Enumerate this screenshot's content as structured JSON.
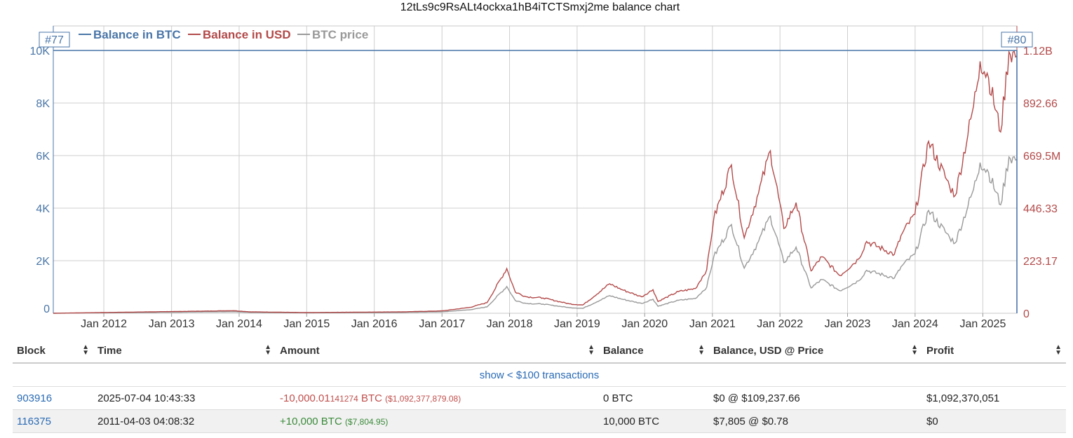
{
  "chart_data": {
    "type": "line",
    "title": "12tLs9c9RsALt4ockxa1hB4iTCTSmxj2me balance chart",
    "legend": [
      "Balance in BTC",
      "Balance in USD",
      "BTC price"
    ],
    "legend_placement": "top-left",
    "markers": [
      "#77",
      "#80"
    ],
    "colors": {
      "btc": "#4a76a8",
      "usd": "#b34a4a",
      "price": "#999999"
    },
    "x_ticks": [
      "Jan 2012",
      "Jan 2013",
      "Jan 2014",
      "Jan 2015",
      "Jan 2016",
      "Jan 2017",
      "Jan 2018",
      "Jan 2019",
      "Jan 2020",
      "Jan 2021",
      "Jan 2022",
      "Jan 2023",
      "Jan 2024",
      "Jan 2025"
    ],
    "xlim": [
      "2011-04-03",
      "2025-07-04"
    ],
    "y_left": {
      "label": "",
      "ticks": [
        "0",
        "2K",
        "4K",
        "6K",
        "8K",
        "10K"
      ],
      "ylim": [
        0,
        10000
      ]
    },
    "y_right": {
      "label": "",
      "ticks": [
        "0",
        "223.17",
        "446.33",
        "669.5M",
        "892.66",
        "1.12B"
      ],
      "ylim": [
        0,
        1116000000
      ]
    },
    "grid": true,
    "series": [
      {
        "name": "Balance in BTC",
        "points": [
          [
            "2011-04-03",
            10000
          ],
          [
            "2025-07-04",
            10000
          ],
          [
            "2025-07-04",
            0
          ]
        ]
      },
      {
        "name": "Balance in USD",
        "points": [
          [
            "2011-04-03",
            7805
          ],
          [
            "2013-12-01",
            11000000
          ],
          [
            "2014-03-01",
            6000000
          ],
          [
            "2015-01-01",
            3000000
          ],
          [
            "2016-06-01",
            6000000
          ],
          [
            "2017-01-01",
            10000000
          ],
          [
            "2017-06-01",
            25000000
          ],
          [
            "2017-09-01",
            45000000
          ],
          [
            "2017-12-17",
            190000000
          ],
          [
            "2018-02-01",
            90000000
          ],
          [
            "2018-04-01",
            70000000
          ],
          [
            "2018-07-01",
            65000000
          ],
          [
            "2018-11-20",
            40000000
          ],
          [
            "2019-02-01",
            35000000
          ],
          [
            "2019-06-26",
            125000000
          ],
          [
            "2019-09-01",
            100000000
          ],
          [
            "2019-12-15",
            70000000
          ],
          [
            "2020-02-15",
            100000000
          ],
          [
            "2020-03-13",
            50000000
          ],
          [
            "2020-07-01",
            92000000
          ],
          [
            "2020-10-01",
            105000000
          ],
          [
            "2020-12-01",
            185000000
          ],
          [
            "2021-01-08",
            400000000
          ],
          [
            "2021-04-14",
            630000000
          ],
          [
            "2021-06-22",
            320000000
          ],
          [
            "2021-09-07",
            510000000
          ],
          [
            "2021-11-10",
            690000000
          ],
          [
            "2022-01-22",
            360000000
          ],
          [
            "2022-03-29",
            470000000
          ],
          [
            "2022-06-18",
            180000000
          ],
          [
            "2022-08-15",
            240000000
          ],
          [
            "2022-11-21",
            160000000
          ],
          [
            "2023-03-01",
            230000000
          ],
          [
            "2023-04-14",
            305000000
          ],
          [
            "2023-09-11",
            250000000
          ],
          [
            "2023-10-24",
            340000000
          ],
          [
            "2023-12-31",
            420000000
          ],
          [
            "2024-03-14",
            730000000
          ],
          [
            "2024-07-05",
            540000000
          ],
          [
            "2024-08-05",
            500000000
          ],
          [
            "2024-11-12",
            880000000
          ],
          [
            "2024-12-17",
            1070000000
          ],
          [
            "2025-02-01",
            1000000000
          ],
          [
            "2025-04-07",
            770000000
          ],
          [
            "2025-05-22",
            1110000000
          ],
          [
            "2025-07-04",
            1092377879
          ]
        ]
      },
      {
        "name": "BTC price",
        "points": [
          [
            "2011-04-03",
            0.78
          ],
          [
            "2013-12-01",
            1100
          ],
          [
            "2014-03-01",
            600
          ],
          [
            "2015-01-01",
            300
          ],
          [
            "2016-06-01",
            600
          ],
          [
            "2017-01-01",
            1000
          ],
          [
            "2017-06-01",
            2500
          ],
          [
            "2017-09-01",
            4500
          ],
          [
            "2017-12-17",
            19000
          ],
          [
            "2018-02-01",
            9000
          ],
          [
            "2018-04-01",
            7000
          ],
          [
            "2018-07-01",
            6500
          ],
          [
            "2018-11-20",
            4000
          ],
          [
            "2019-02-01",
            3500
          ],
          [
            "2019-06-26",
            12500
          ],
          [
            "2019-09-01",
            10000
          ],
          [
            "2019-12-15",
            7000
          ],
          [
            "2020-02-15",
            10000
          ],
          [
            "2020-03-13",
            5000
          ],
          [
            "2020-07-01",
            9200
          ],
          [
            "2020-10-01",
            10500
          ],
          [
            "2020-12-01",
            18500
          ],
          [
            "2021-01-08",
            40000
          ],
          [
            "2021-04-14",
            63000
          ],
          [
            "2021-06-22",
            32000
          ],
          [
            "2021-09-07",
            51000
          ],
          [
            "2021-11-10",
            69000
          ],
          [
            "2022-01-22",
            36000
          ],
          [
            "2022-03-29",
            47000
          ],
          [
            "2022-06-18",
            18000
          ],
          [
            "2022-08-15",
            24000
          ],
          [
            "2022-11-21",
            16000
          ],
          [
            "2023-03-01",
            23000
          ],
          [
            "2023-04-14",
            30500
          ],
          [
            "2023-09-11",
            25000
          ],
          [
            "2023-10-24",
            34000
          ],
          [
            "2023-12-31",
            42000
          ],
          [
            "2024-03-14",
            73000
          ],
          [
            "2024-07-05",
            54000
          ],
          [
            "2024-08-05",
            50000
          ],
          [
            "2024-11-12",
            88000
          ],
          [
            "2024-12-17",
            107000
          ],
          [
            "2025-02-01",
            100000
          ],
          [
            "2025-04-07",
            77000
          ],
          [
            "2025-05-22",
            111000
          ],
          [
            "2025-07-04",
            109237.66
          ]
        ]
      }
    ]
  },
  "table": {
    "headers": [
      "Block",
      "Time",
      "Amount",
      "Balance",
      "Balance, USD @ Price",
      "Profit"
    ],
    "show_link": "show < $100 transactions",
    "rows": [
      {
        "block": "903916",
        "time": "2025-07-04 10:43:33",
        "amount_main": "-10,000.01",
        "amount_small": "141274",
        "amount_unit": " BTC",
        "amount_usd": "($1,092,377,879.08)",
        "balance": "0 BTC",
        "balance_usd": "$0 @ $109,237.66",
        "profit": "$1,092,370,051"
      },
      {
        "block": "116375",
        "time": "2011-04-03 04:08:32",
        "amount_main": "+10,000 BTC",
        "amount_usd": "($7,804.95)",
        "balance": "10,000 BTC",
        "balance_usd": "$7,805 @ $0.78",
        "profit": "$0"
      }
    ]
  }
}
